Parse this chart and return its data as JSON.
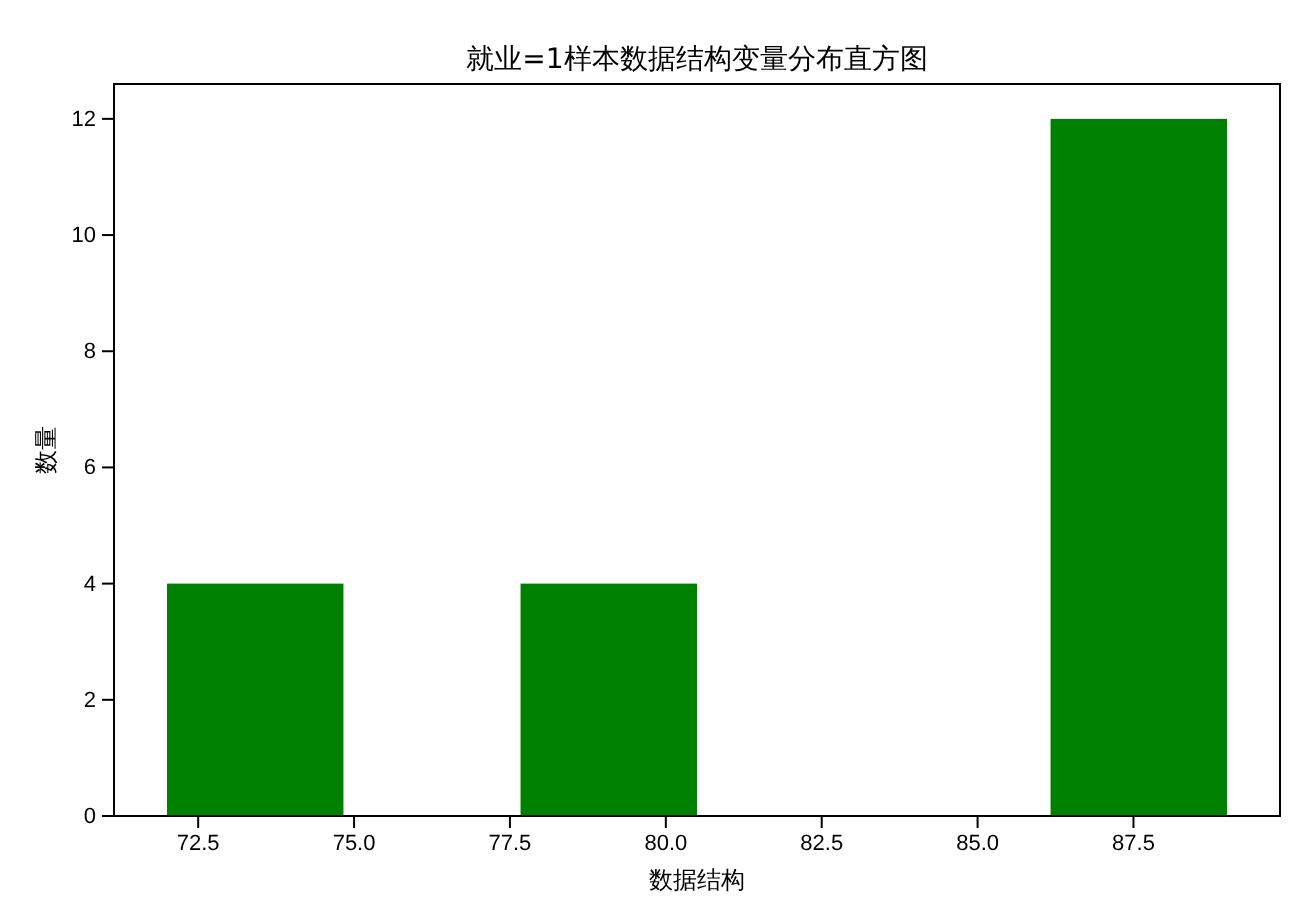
{
  "chart_data": {
    "type": "histogram",
    "title": "就业=1样本数据结构变量分布直方图",
    "xlabel": "数据结构",
    "ylabel": "数量",
    "bins": [
      72,
      74.83,
      77.67,
      80.5,
      86.17,
      89
    ],
    "values": [
      4,
      0,
      4,
      0,
      12
    ],
    "color": "#008000",
    "xlim": [
      71.15,
      89.85
    ],
    "xticks": [
      {
        "value": 72.5,
        "label": "72.5"
      },
      {
        "value": 75,
        "label": "75.0"
      },
      {
        "value": 77.5,
        "label": "77.5"
      },
      {
        "value": 80,
        "label": "80.0"
      },
      {
        "value": 82.5,
        "label": "82.5"
      },
      {
        "value": 85,
        "label": "85.0"
      },
      {
        "value": 87.5,
        "label": "87.5"
      }
    ],
    "ylim": [
      0,
      12.6
    ],
    "yticks": [
      0,
      2,
      4,
      6,
      8,
      10,
      12
    ],
    "grid": false,
    "legend": false
  }
}
